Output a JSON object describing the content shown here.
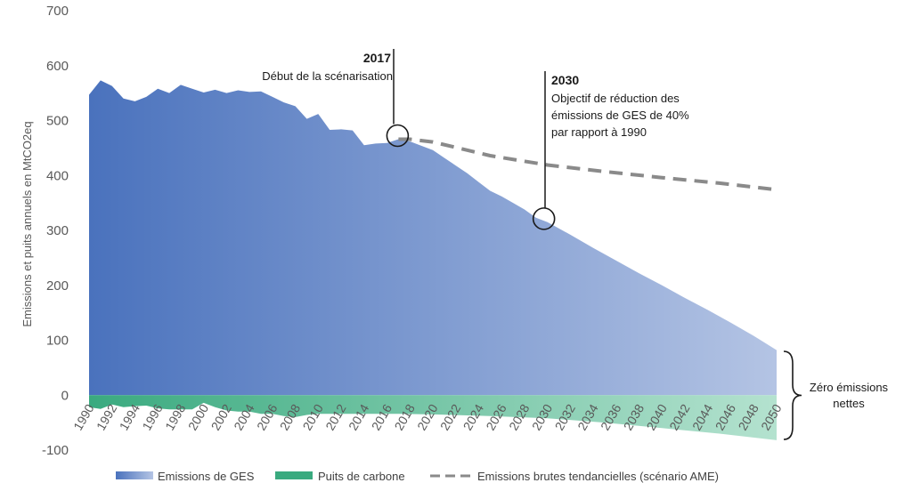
{
  "chart_data": {
    "type": "area",
    "ylabel": "Emissions et puits annuels en MtCO2eq",
    "ylim": [
      -100,
      700
    ],
    "yticks": [
      700,
      600,
      500,
      400,
      300,
      200,
      100,
      0,
      -100
    ],
    "x_tick_labels": [
      "1990",
      "1992",
      "1994",
      "1996",
      "1998",
      "2000",
      "2002",
      "2004",
      "2006",
      "2008",
      "2010",
      "2012",
      "2014",
      "2016",
      "2018",
      "2020",
      "2022",
      "2024",
      "2026",
      "2028",
      "2030",
      "2032",
      "2034",
      "2036",
      "2038",
      "2040",
      "2042",
      "2044",
      "2046",
      "2048",
      "2050"
    ],
    "xlim": [
      1990,
      2050
    ],
    "series": [
      {
        "name": "Emissions de GES",
        "kind": "area",
        "color_start": "#4a72bd",
        "color_end": "#b4c4e4",
        "x": [
          1990,
          1991,
          1992,
          1993,
          1994,
          1995,
          1996,
          1997,
          1998,
          1999,
          2000,
          2001,
          2002,
          2003,
          2004,
          2005,
          2006,
          2007,
          2008,
          2009,
          2010,
          2011,
          2012,
          2013,
          2014,
          2015,
          2016,
          2017,
          2018,
          2019,
          2020,
          2021,
          2022,
          2023,
          2024,
          2025,
          2026,
          2027,
          2028,
          2029,
          2030,
          2032,
          2034,
          2036,
          2038,
          2040,
          2042,
          2044,
          2046,
          2048,
          2050
        ],
        "y": [
          547,
          573,
          563,
          540,
          535,
          543,
          558,
          550,
          565,
          558,
          551,
          556,
          550,
          555,
          552,
          553,
          543,
          533,
          526,
          503,
          512,
          483,
          484,
          482,
          455,
          458,
          459,
          466,
          462,
          454,
          446,
          432,
          418,
          404,
          388,
          372,
          362,
          350,
          338,
          323,
          315,
          292,
          268,
          245,
          222,
          200,
          177,
          155,
          132,
          108,
          82
        ]
      },
      {
        "name": "Puits de carbone",
        "kind": "area",
        "color_start": "#3aaa7f",
        "color_end": "#b4e2cf",
        "x": [
          1990,
          1991,
          1992,
          1993,
          1994,
          1995,
          1996,
          1997,
          1998,
          1999,
          2000,
          2001,
          2002,
          2003,
          2004,
          2005,
          2006,
          2007,
          2008,
          2009,
          2010,
          2012,
          2014,
          2016,
          2017,
          2020,
          2025,
          2030,
          2035,
          2040,
          2045,
          2050
        ],
        "y": [
          -22,
          -25,
          -17,
          -22,
          -20,
          -19,
          -24,
          -26,
          -26,
          -26,
          -14,
          -22,
          -28,
          -30,
          -30,
          -34,
          -34,
          -38,
          -40,
          -36,
          -34,
          -34,
          -34,
          -34,
          -34,
          -35,
          -38,
          -42,
          -50,
          -60,
          -70,
          -82
        ]
      },
      {
        "name": "Emissions brutes tendancielles (scénario AME)",
        "kind": "line",
        "style": "dashed",
        "color": "#8a8a8a",
        "x": [
          2017,
          2018,
          2020,
          2025,
          2030,
          2035,
          2040,
          2045,
          2050
        ],
        "y": [
          466,
          466,
          461,
          436,
          419,
          407,
          396,
          386,
          374
        ]
      }
    ],
    "annotations": [
      {
        "title": "2017",
        "lines": [
          "Début de la scénarisation"
        ],
        "x": 2017,
        "y": 466
      },
      {
        "title": "2030",
        "lines": [
          "Objectif de réduction des",
          "émissions de GES de 40%",
          "par rapport à 1990"
        ],
        "x": 2030,
        "y": 318
      }
    ],
    "brace_label": [
      "Zéro émissions",
      "nettes"
    ],
    "legend": [
      {
        "label": "Emissions de GES",
        "swatch": "ges"
      },
      {
        "label": "Puits de carbone",
        "swatch": "puits"
      },
      {
        "label": "Emissions brutes tendancielles (scénario AME)",
        "swatch": "dash"
      }
    ],
    "legend_position": "bottom"
  }
}
